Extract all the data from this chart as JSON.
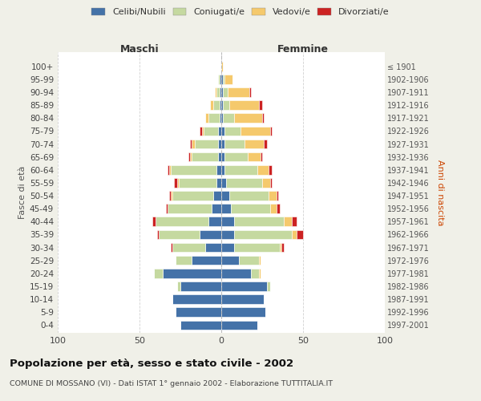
{
  "age_groups": [
    "0-4",
    "5-9",
    "10-14",
    "15-19",
    "20-24",
    "25-29",
    "30-34",
    "35-39",
    "40-44",
    "45-49",
    "50-54",
    "55-59",
    "60-64",
    "65-69",
    "70-74",
    "75-79",
    "80-84",
    "85-89",
    "90-94",
    "95-99",
    "100+"
  ],
  "birth_years": [
    "1997-2001",
    "1992-1996",
    "1987-1991",
    "1982-1986",
    "1977-1981",
    "1972-1976",
    "1967-1971",
    "1962-1966",
    "1957-1961",
    "1952-1956",
    "1947-1951",
    "1942-1946",
    "1937-1941",
    "1932-1936",
    "1927-1931",
    "1922-1926",
    "1917-1921",
    "1912-1916",
    "1907-1911",
    "1902-1906",
    "≤ 1901"
  ],
  "males_single": [
    25,
    28,
    30,
    25,
    36,
    18,
    10,
    13,
    8,
    6,
    5,
    3,
    3,
    2,
    2,
    2,
    1,
    1,
    1,
    1,
    0
  ],
  "males_married": [
    0,
    0,
    0,
    2,
    5,
    10,
    20,
    25,
    32,
    27,
    25,
    23,
    28,
    16,
    14,
    9,
    7,
    4,
    2,
    1,
    0
  ],
  "males_widowed": [
    0,
    0,
    0,
    0,
    0,
    0,
    0,
    0,
    0,
    0,
    1,
    1,
    1,
    1,
    2,
    1,
    2,
    2,
    1,
    0,
    0
  ],
  "males_divorced": [
    0,
    0,
    0,
    0,
    0,
    0,
    1,
    1,
    2,
    1,
    1,
    2,
    1,
    1,
    1,
    1,
    0,
    0,
    0,
    0,
    0
  ],
  "females_single": [
    22,
    27,
    26,
    28,
    18,
    11,
    8,
    8,
    8,
    6,
    5,
    3,
    2,
    2,
    2,
    2,
    1,
    1,
    1,
    1,
    0
  ],
  "females_married": [
    0,
    0,
    0,
    2,
    5,
    12,
    28,
    35,
    30,
    24,
    24,
    22,
    20,
    14,
    12,
    10,
    7,
    4,
    3,
    1,
    0
  ],
  "females_widowed": [
    0,
    0,
    0,
    0,
    1,
    1,
    1,
    3,
    5,
    4,
    5,
    5,
    7,
    8,
    12,
    18,
    17,
    18,
    13,
    5,
    1
  ],
  "females_divorced": [
    0,
    0,
    0,
    0,
    0,
    0,
    1,
    4,
    3,
    2,
    1,
    1,
    2,
    1,
    2,
    1,
    1,
    2,
    1,
    0,
    0
  ],
  "color_single": "#4472A8",
  "color_married": "#C5D9A0",
  "color_widowed": "#F5C96C",
  "color_divorced": "#CC2222",
  "xlim": 100,
  "title": "Popolazione per età, sesso e stato civile - 2002",
  "subtitle": "COMUNE DI MOSSANO (VI) - Dati ISTAT 1° gennaio 2002 - Elaborazione TUTTITALIA.IT",
  "ylabel": "Fasce di età",
  "ylabel_right": "Anni di nascita",
  "label_maschi": "Maschi",
  "label_femmine": "Femmine",
  "legend_labels": [
    "Celibi/Nubili",
    "Coniugati/e",
    "Vedovi/e",
    "Divorziati/e"
  ],
  "bg_color": "#f0f0e8",
  "plot_bg": "#ffffff"
}
